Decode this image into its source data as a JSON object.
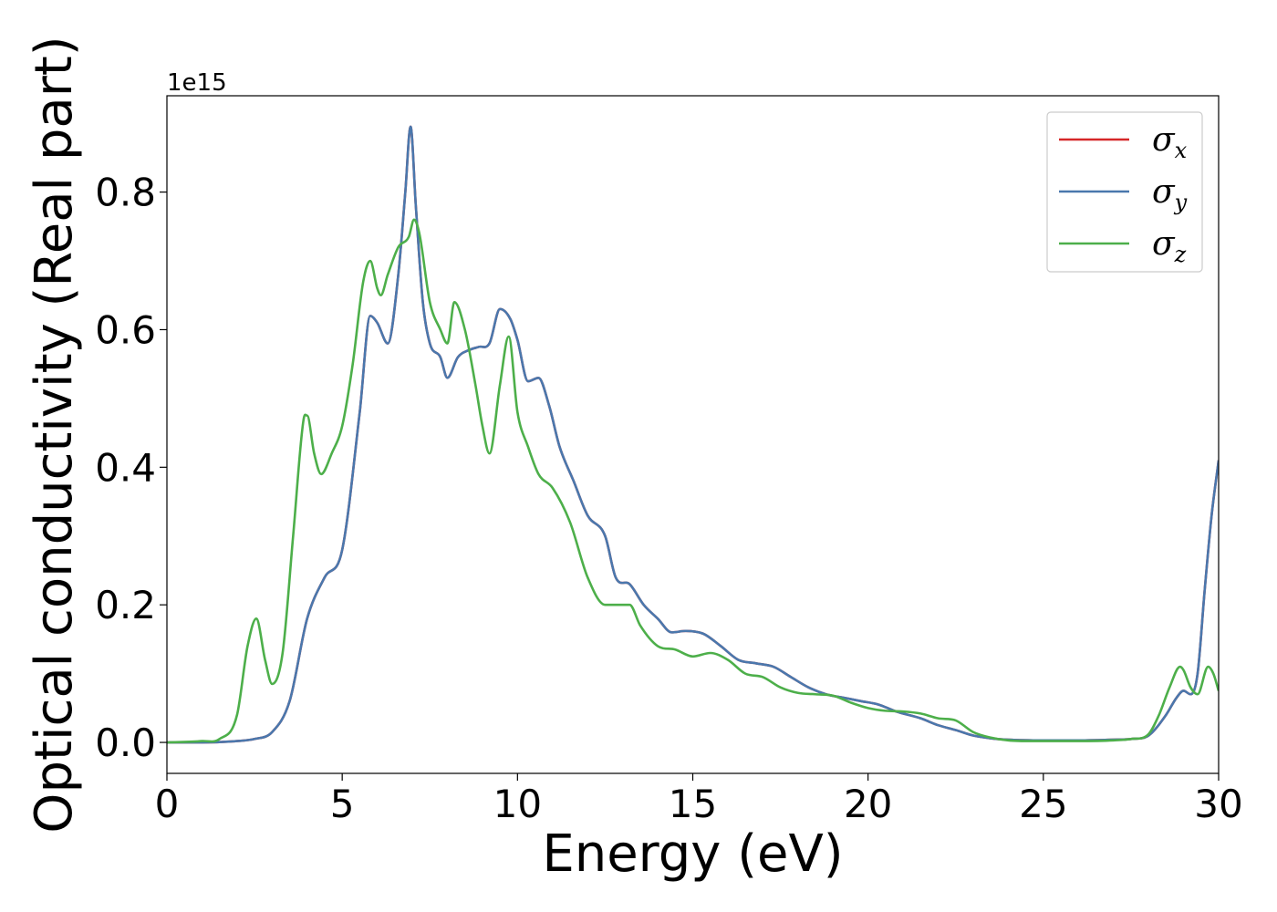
{
  "chart_data": {
    "type": "line",
    "xlabel": "Energy (eV)",
    "ylabel": "Optical conductivity (Real part)",
    "y_offset_text": "1e15",
    "xlim": [
      0,
      30
    ],
    "ylim": [
      -0.045,
      0.94
    ],
    "x_ticks": [
      0,
      5,
      10,
      15,
      20,
      25,
      30
    ],
    "x_tick_labels": [
      "0",
      "5",
      "10",
      "15",
      "20",
      "25",
      "30"
    ],
    "y_ticks": [
      0.0,
      0.2,
      0.4,
      0.6,
      0.8
    ],
    "y_tick_labels": [
      "0.0",
      "0.2",
      "0.4",
      "0.6",
      "0.8"
    ],
    "grid": false,
    "legend_position": "top-right",
    "series": [
      {
        "name": "σ_x",
        "legend_symbol": "σ",
        "legend_subscript": "x",
        "color": "#d62728",
        "x": [
          0,
          1,
          2,
          2.5,
          3,
          3.5,
          4,
          4.5,
          5,
          5.5,
          5.8,
          6.0,
          6.3,
          6.6,
          6.8,
          6.95,
          7.1,
          7.3,
          7.5,
          7.8,
          8.0,
          8.3,
          8.6,
          8.9,
          9.2,
          9.5,
          9.8,
          10.0,
          10.3,
          10.6,
          10.9,
          11.2,
          11.6,
          12.0,
          12.5,
          12.8,
          13.2,
          13.6,
          14.0,
          14.4,
          14.8,
          15.3,
          15.8,
          16.3,
          16.8,
          17.3,
          17.8,
          18.3,
          18.8,
          19.3,
          19.8,
          20.3,
          20.8,
          21.5,
          22.0,
          22.5,
          23.0,
          23.5,
          24.0,
          25.0,
          26.0,
          27.0,
          27.5,
          28.0,
          28.5,
          28.8,
          29.0,
          29.2,
          29.4,
          29.6,
          29.8,
          30.0
        ],
        "y": [
          0.0,
          0.0,
          0.002,
          0.005,
          0.015,
          0.06,
          0.18,
          0.24,
          0.28,
          0.48,
          0.62,
          0.61,
          0.58,
          0.68,
          0.8,
          0.895,
          0.78,
          0.64,
          0.58,
          0.56,
          0.53,
          0.56,
          0.57,
          0.575,
          0.58,
          0.63,
          0.615,
          0.585,
          0.525,
          0.53,
          0.49,
          0.43,
          0.38,
          0.33,
          0.3,
          0.24,
          0.23,
          0.2,
          0.18,
          0.16,
          0.162,
          0.158,
          0.14,
          0.12,
          0.115,
          0.11,
          0.095,
          0.08,
          0.07,
          0.065,
          0.06,
          0.055,
          0.045,
          0.035,
          0.025,
          0.018,
          0.01,
          0.006,
          0.004,
          0.003,
          0.003,
          0.004,
          0.005,
          0.01,
          0.04,
          0.065,
          0.075,
          0.07,
          0.1,
          0.22,
          0.33,
          0.41
        ]
      },
      {
        "name": "σ_y",
        "legend_symbol": "σ",
        "legend_subscript": "y",
        "color": "#4a78ad",
        "x": [
          0,
          1,
          2,
          2.5,
          3,
          3.5,
          4,
          4.5,
          5,
          5.5,
          5.8,
          6.0,
          6.3,
          6.6,
          6.8,
          6.95,
          7.1,
          7.3,
          7.5,
          7.8,
          8.0,
          8.3,
          8.6,
          8.9,
          9.2,
          9.5,
          9.8,
          10.0,
          10.3,
          10.6,
          10.9,
          11.2,
          11.6,
          12.0,
          12.5,
          12.8,
          13.2,
          13.6,
          14.0,
          14.4,
          14.8,
          15.3,
          15.8,
          16.3,
          16.8,
          17.3,
          17.8,
          18.3,
          18.8,
          19.3,
          19.8,
          20.3,
          20.8,
          21.5,
          22.0,
          22.5,
          23.0,
          23.5,
          24.0,
          25.0,
          26.0,
          27.0,
          27.5,
          28.0,
          28.5,
          28.8,
          29.0,
          29.2,
          29.4,
          29.6,
          29.8,
          30.0
        ],
        "y": [
          0.0,
          0.0,
          0.002,
          0.005,
          0.015,
          0.06,
          0.18,
          0.24,
          0.28,
          0.48,
          0.62,
          0.61,
          0.58,
          0.68,
          0.8,
          0.895,
          0.78,
          0.64,
          0.58,
          0.56,
          0.53,
          0.56,
          0.57,
          0.575,
          0.58,
          0.63,
          0.615,
          0.585,
          0.525,
          0.53,
          0.49,
          0.43,
          0.38,
          0.33,
          0.3,
          0.24,
          0.23,
          0.2,
          0.18,
          0.16,
          0.162,
          0.158,
          0.14,
          0.12,
          0.115,
          0.11,
          0.095,
          0.08,
          0.07,
          0.065,
          0.06,
          0.055,
          0.045,
          0.035,
          0.025,
          0.018,
          0.01,
          0.006,
          0.004,
          0.003,
          0.003,
          0.004,
          0.005,
          0.01,
          0.04,
          0.065,
          0.075,
          0.07,
          0.1,
          0.22,
          0.33,
          0.41
        ]
      },
      {
        "name": "σ_z",
        "legend_symbol": "σ",
        "legend_subscript": "z",
        "color": "#4daf4a",
        "x": [
          0,
          1,
          1.5,
          2.0,
          2.3,
          2.55,
          2.8,
          3.0,
          3.3,
          3.6,
          3.9,
          4.0,
          4.2,
          4.4,
          4.7,
          5.0,
          5.3,
          5.6,
          5.8,
          6.0,
          6.1,
          6.3,
          6.6,
          6.9,
          7.05,
          7.2,
          7.5,
          7.8,
          8.0,
          8.2,
          8.5,
          8.8,
          9.0,
          9.2,
          9.5,
          9.75,
          10.0,
          10.3,
          10.6,
          11.0,
          11.5,
          12.0,
          12.5,
          12.8,
          13.2,
          13.5,
          14.0,
          14.5,
          15.0,
          15.5,
          16.0,
          16.5,
          17.0,
          17.5,
          18.0,
          18.5,
          19.0,
          19.5,
          20.0,
          20.5,
          21.0,
          21.5,
          22.0,
          22.5,
          23.0,
          23.5,
          24.0,
          25.0,
          26.0,
          27.0,
          27.5,
          28.0,
          28.3,
          28.6,
          28.9,
          29.0,
          29.2,
          29.4,
          29.7,
          29.85,
          30.0
        ],
        "y": [
          0.0,
          0.002,
          0.005,
          0.04,
          0.14,
          0.18,
          0.12,
          0.085,
          0.13,
          0.3,
          0.47,
          0.475,
          0.42,
          0.39,
          0.42,
          0.46,
          0.55,
          0.67,
          0.7,
          0.66,
          0.65,
          0.68,
          0.72,
          0.735,
          0.76,
          0.74,
          0.64,
          0.6,
          0.58,
          0.64,
          0.6,
          0.52,
          0.46,
          0.42,
          0.52,
          0.59,
          0.48,
          0.43,
          0.39,
          0.37,
          0.32,
          0.24,
          0.2,
          0.2,
          0.2,
          0.17,
          0.14,
          0.135,
          0.125,
          0.13,
          0.12,
          0.1,
          0.095,
          0.08,
          0.072,
          0.07,
          0.068,
          0.058,
          0.05,
          0.046,
          0.045,
          0.042,
          0.035,
          0.032,
          0.015,
          0.007,
          0.003,
          0.002,
          0.002,
          0.003,
          0.005,
          0.012,
          0.04,
          0.08,
          0.11,
          0.105,
          0.08,
          0.07,
          0.11,
          0.1,
          0.075
        ]
      }
    ]
  }
}
